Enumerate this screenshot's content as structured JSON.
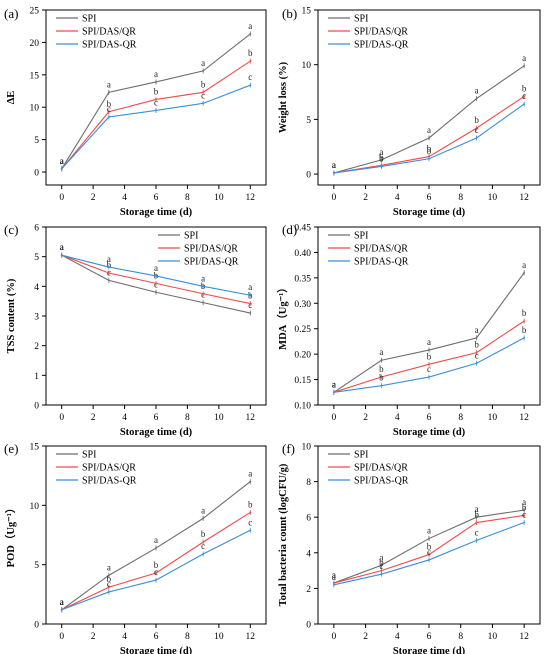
{
  "figure": {
    "colors": {
      "SPI": "#6d6d6d",
      "SPI/DAS/QR": "#ef4b4b",
      "SPI/DAS-QR": "#3a8fd8",
      "axis": "#000000"
    }
  },
  "chart_data": [
    {
      "id": "a",
      "panel_label": "(a)",
      "type": "line",
      "xlabel": "Storage time (d)",
      "ylabel": "ΔE",
      "x": [
        0,
        3,
        6,
        9,
        12
      ],
      "xlim": [
        -1,
        13
      ],
      "ylim": [
        -2,
        25
      ],
      "xticks": [
        "0",
        "2",
        "4",
        "6",
        "8",
        "10",
        "12"
      ],
      "yticks": [
        "0",
        "5",
        "10",
        "15",
        "20",
        "25"
      ],
      "legend": "top-left",
      "series": [
        {
          "name": "SPI",
          "values": [
            0.5,
            12.3,
            13.9,
            15.6,
            21.3
          ],
          "letters": [
            "a",
            "a",
            "a",
            "a",
            "a"
          ]
        },
        {
          "name": "SPI/DAS/QR",
          "values": [
            0.5,
            9.3,
            11.2,
            12.3,
            17.1
          ],
          "letters": [
            "a",
            "b",
            "b",
            "b",
            "b"
          ]
        },
        {
          "name": "SPI/DAS-QR",
          "values": [
            0.5,
            8.5,
            9.5,
            10.6,
            13.4
          ],
          "letters": [
            "a",
            "c",
            "c",
            "c",
            "c"
          ]
        }
      ]
    },
    {
      "id": "b",
      "panel_label": "(b)",
      "type": "line",
      "xlabel": "Storage time (d)",
      "ylabel": "Weight loss (%)",
      "x": [
        0,
        3,
        6,
        9,
        12
      ],
      "xlim": [
        -1,
        13
      ],
      "ylim": [
        -1,
        15
      ],
      "xticks": [
        "0",
        "2",
        "4",
        "6",
        "8",
        "10",
        "12"
      ],
      "yticks": [
        "0",
        "5",
        "10",
        "15"
      ],
      "legend": "top-left",
      "series": [
        {
          "name": "SPI",
          "values": [
            0.1,
            1.3,
            3.3,
            6.9,
            9.9
          ],
          "letters": [
            "a",
            "a",
            "a",
            "a",
            "a"
          ]
        },
        {
          "name": "SPI/DAS/QR",
          "values": [
            0.1,
            0.8,
            1.6,
            4.2,
            7.1
          ],
          "letters": [
            "a",
            "b",
            "b",
            "b",
            "b"
          ]
        },
        {
          "name": "SPI/DAS-QR",
          "values": [
            0.1,
            0.7,
            1.4,
            3.3,
            6.4
          ],
          "letters": [
            "a",
            "b",
            "b",
            "c",
            "c"
          ]
        }
      ]
    },
    {
      "id": "c",
      "panel_label": "(c)",
      "type": "line",
      "xlabel": "Storage time (d)",
      "ylabel": "TSS content (%)",
      "x": [
        0,
        3,
        6,
        9,
        12
      ],
      "xlim": [
        -1,
        13
      ],
      "ylim": [
        0,
        6
      ],
      "xticks": [
        "0",
        "2",
        "4",
        "6",
        "8",
        "10",
        "12"
      ],
      "yticks": [
        "0",
        "1",
        "2",
        "3",
        "4",
        "5",
        "6"
      ],
      "legend": "top-right",
      "series": [
        {
          "name": "SPI",
          "values": [
            5.05,
            4.2,
            3.8,
            3.45,
            3.1
          ],
          "letters": [
            "a",
            "c",
            "c",
            "c",
            "c"
          ]
        },
        {
          "name": "SPI/DAS/QR",
          "values": [
            5.05,
            4.45,
            4.1,
            3.75,
            3.42
          ],
          "letters": [
            "a",
            "b",
            "b",
            "b",
            "b"
          ]
        },
        {
          "name": "SPI/DAS-QR",
          "values": [
            5.05,
            4.65,
            4.35,
            4.0,
            3.7
          ],
          "letters": [
            "a",
            "a",
            "a",
            "a",
            "a"
          ]
        }
      ]
    },
    {
      "id": "d",
      "panel_label": "(d)",
      "type": "line",
      "xlabel": "Storage time (d)",
      "ylabel": "MDA（Ug⁻¹）",
      "x": [
        0,
        3,
        6,
        9,
        12
      ],
      "xlim": [
        -1,
        13
      ],
      "ylim": [
        0.1,
        0.45
      ],
      "xticks": [
        "0",
        "2",
        "4",
        "6",
        "8",
        "10",
        "12"
      ],
      "yticks": [
        "0.10",
        "0.15",
        "0.20",
        "0.25",
        "0.30",
        "0.35",
        "0.40",
        "0.45"
      ],
      "legend": "top-left",
      "series": [
        {
          "name": "SPI",
          "values": [
            0.125,
            0.188,
            0.208,
            0.232,
            0.36
          ],
          "letters": [
            "a",
            "a",
            "a",
            "a",
            "a"
          ]
        },
        {
          "name": "SPI/DAS/QR",
          "values": [
            0.125,
            0.155,
            0.18,
            0.203,
            0.265
          ],
          "letters": [
            "a",
            "b",
            "b",
            "b",
            "b"
          ]
        },
        {
          "name": "SPI/DAS-QR",
          "values": [
            0.125,
            0.138,
            0.155,
            0.182,
            0.232
          ],
          "letters": [
            "a",
            "b",
            "c",
            "c",
            "b"
          ]
        }
      ]
    },
    {
      "id": "e",
      "panel_label": "(e)",
      "type": "line",
      "xlabel": "Storage time (d)",
      "ylabel": "POD（Ug⁻¹）",
      "x": [
        0,
        3,
        6,
        9,
        12
      ],
      "xlim": [
        -1,
        13
      ],
      "ylim": [
        0,
        15
      ],
      "xticks": [
        "0",
        "2",
        "4",
        "6",
        "8",
        "10",
        "12"
      ],
      "yticks": [
        "0",
        "5",
        "10",
        "15"
      ],
      "legend": "top-left",
      "series": [
        {
          "name": "SPI",
          "values": [
            1.2,
            4.1,
            6.4,
            8.9,
            12.0
          ],
          "letters": [
            "a",
            "a",
            "a",
            "a",
            "a"
          ]
        },
        {
          "name": "SPI/DAS/QR",
          "values": [
            1.2,
            3.1,
            4.3,
            6.9,
            9.4
          ],
          "letters": [
            "a",
            "b",
            "b",
            "b",
            "b"
          ]
        },
        {
          "name": "SPI/DAS-QR",
          "values": [
            1.2,
            2.7,
            3.7,
            5.9,
            7.9
          ],
          "letters": [
            "a",
            "c",
            "c",
            "c",
            "c"
          ]
        }
      ]
    },
    {
      "id": "f",
      "panel_label": "(f)",
      "type": "line",
      "xlabel": "Storage time (d)",
      "ylabel": "Total bacteria count (logCFU/g)",
      "x": [
        0,
        3,
        6,
        9,
        12
      ],
      "xlim": [
        -1,
        13
      ],
      "ylim": [
        0,
        10
      ],
      "xticks": [
        "0",
        "2",
        "4",
        "6",
        "8",
        "10",
        "12"
      ],
      "yticks": [
        "0",
        "2",
        "4",
        "6",
        "8",
        "10"
      ],
      "legend": "top-left",
      "series": [
        {
          "name": "SPI",
          "values": [
            2.3,
            3.3,
            4.8,
            6.0,
            6.4
          ],
          "letters": [
            "a",
            "a",
            "a",
            "a",
            "a"
          ]
        },
        {
          "name": "SPI/DAS/QR",
          "values": [
            2.3,
            3.0,
            3.9,
            5.7,
            6.1
          ],
          "letters": [
            "a",
            "b",
            "b",
            "b",
            "b"
          ]
        },
        {
          "name": "SPI/DAS-QR",
          "values": [
            2.2,
            2.8,
            3.6,
            4.7,
            5.7
          ],
          "letters": [
            "a",
            "c",
            "c",
            "c",
            "c"
          ]
        }
      ]
    }
  ]
}
